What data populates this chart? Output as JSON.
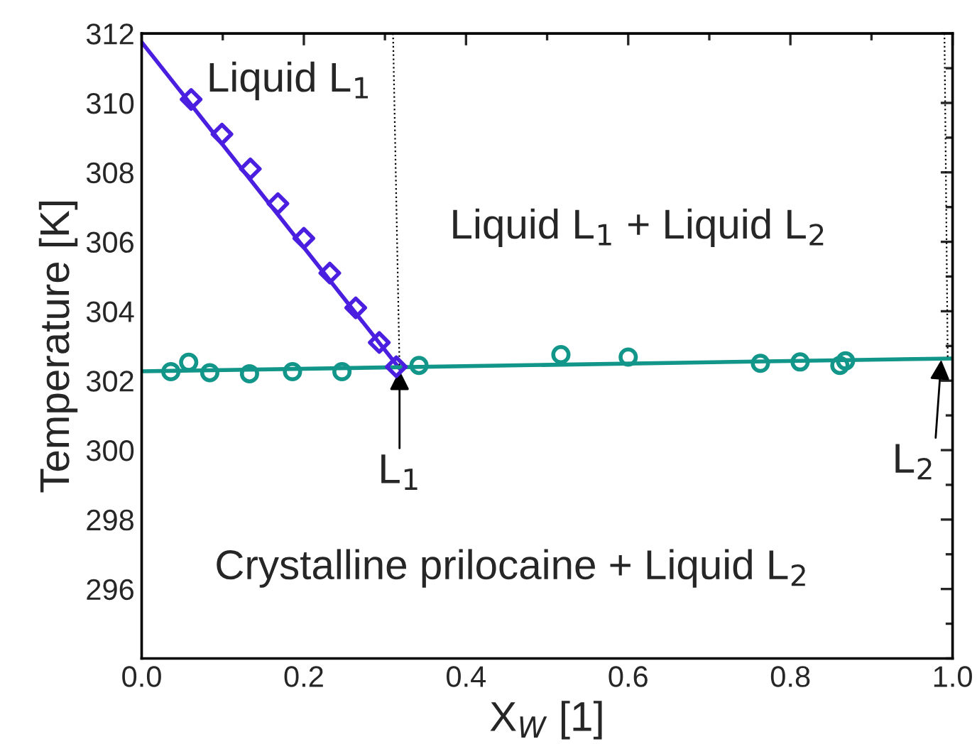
{
  "chart_data": {
    "type": "scatter",
    "xlabel": "X$_{W}$ [1]",
    "ylabel": "Temperature [K]",
    "xlim": [
      0,
      1
    ],
    "ylim": [
      294,
      312
    ],
    "xticks": [
      {
        "value": 0,
        "label": "0.0"
      },
      0.2,
      0.4,
      0.6,
      0.8,
      {
        "value": 1,
        "label": "1.0"
      }
    ],
    "yticks": [
      296,
      298,
      300,
      302,
      304,
      306,
      308,
      310,
      312
    ],
    "grid": false,
    "legend": false,
    "series": [
      {
        "type": "line",
        "color": "#4b1fe0",
        "marker": "none",
        "line_style": "solid",
        "x": [
          0,
          0.318
        ],
        "values": [
          311.75,
          302.35
        ]
      },
      {
        "type": "line",
        "color": "#13968a",
        "marker": "none",
        "line_style": "solid",
        "x": [
          0,
          1
        ],
        "values": [
          302.27,
          302.64
        ]
      },
      {
        "type": "line",
        "color": "#000000",
        "marker": "none",
        "line_style": "dotted",
        "x": [
          0.31,
          0.318
        ],
        "values": [
          312,
          302.4
        ]
      },
      {
        "type": "line",
        "color": "#000000",
        "marker": "none",
        "line_style": "dotted",
        "x": [
          0.99,
          0.994
        ],
        "values": [
          312,
          302.64
        ]
      },
      {
        "color": "#13968a",
        "marker": "circle",
        "x": [
          0.036,
          0.058,
          0.084,
          0.133,
          0.186,
          0.247,
          0.318,
          0.342,
          0.517,
          0.6,
          0.763,
          0.812,
          0.861,
          0.868
        ],
        "values": [
          302.26,
          302.53,
          302.23,
          302.2,
          302.26,
          302.26,
          null,
          302.44,
          302.75,
          302.68,
          302.5,
          302.54,
          302.44,
          302.57
        ]
      },
      {
        "color": "#4b1fe0",
        "marker": "diamond",
        "x": [
          0.061,
          0.099,
          0.134,
          0.168,
          0.2,
          0.232,
          0.264,
          0.293,
          0.314
        ],
        "values": [
          310.1,
          309.1,
          308.1,
          307.1,
          306.1,
          305.1,
          304.1,
          303.1,
          302.4
        ]
      }
    ],
    "annotations": [
      "Liquid L$_{1}$",
      "Liquid L$_{1}$ + Liquid L$_{2}$",
      "Crystalline prilocaine + Liquid L$_{2}$",
      {
        "text": "L$_{1}$",
        "x": 0.318,
        "y": 302.3
      },
      {
        "text": "L$_{2}$",
        "x": 0.986,
        "y": 302.6
      }
    ]
  }
}
